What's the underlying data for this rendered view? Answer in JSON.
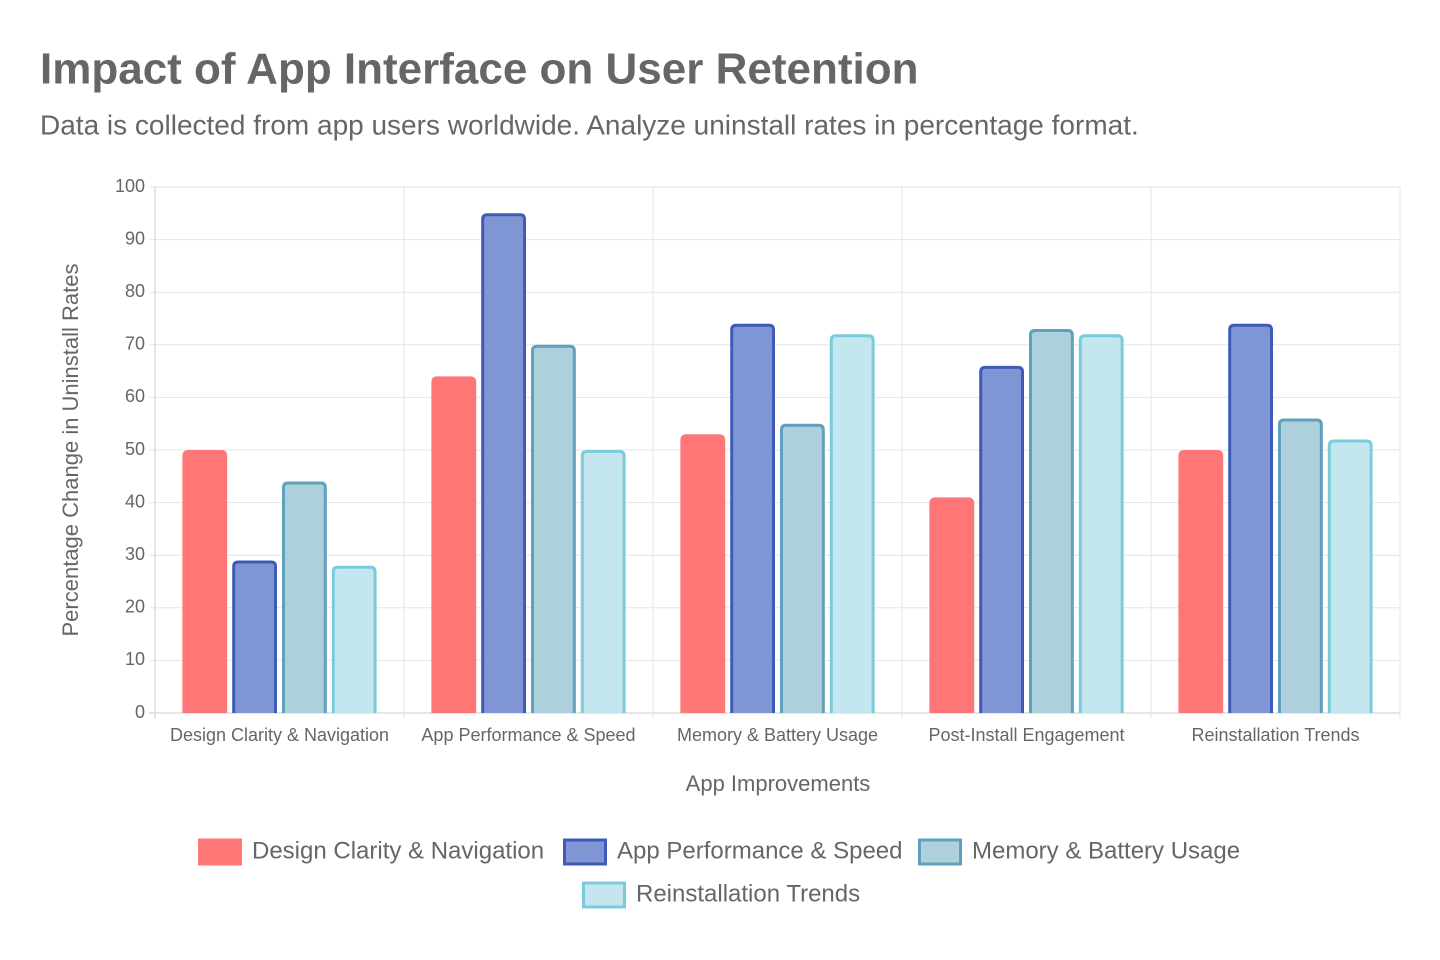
{
  "chart_data": {
    "type": "bar",
    "title": "Impact of App Interface on User Retention",
    "subtitle": "Data is collected from app users worldwide. Analyze uninstall rates in percentage format.",
    "x_label": "App Improvements",
    "y_label": "Percentage Change in Uninstall Rates",
    "categories": [
      "Design Clarity & Navigation",
      "App Performance & Speed",
      "Memory & Battery Usage",
      "Post-Install Engagement",
      "Reinstallation Trends"
    ],
    "series": [
      {
        "name": "Design Clarity & Navigation",
        "color": "#ff7676",
        "border": "#ff7676",
        "values": [
          50,
          64,
          53,
          41,
          50
        ]
      },
      {
        "name": "App Performance & Speed",
        "color": "#8096d4",
        "border": "#3f5bb8",
        "values": [
          29,
          95,
          74,
          66,
          74
        ]
      },
      {
        "name": "Memory & Battery Usage",
        "color": "#aecfdc",
        "border": "#5fa1bb",
        "values": [
          44,
          70,
          55,
          73,
          56
        ]
      },
      {
        "name": "Reinstallation Trends",
        "color": "#c3e6ef",
        "border": "#7ccbdc",
        "values": [
          28,
          50,
          72,
          72,
          52
        ]
      }
    ],
    "ylim": [
      0,
      100
    ],
    "yticks": [
      0,
      10,
      20,
      30,
      40,
      50,
      60,
      70,
      80,
      90,
      100
    ],
    "grid": true,
    "legend": "bottom"
  }
}
